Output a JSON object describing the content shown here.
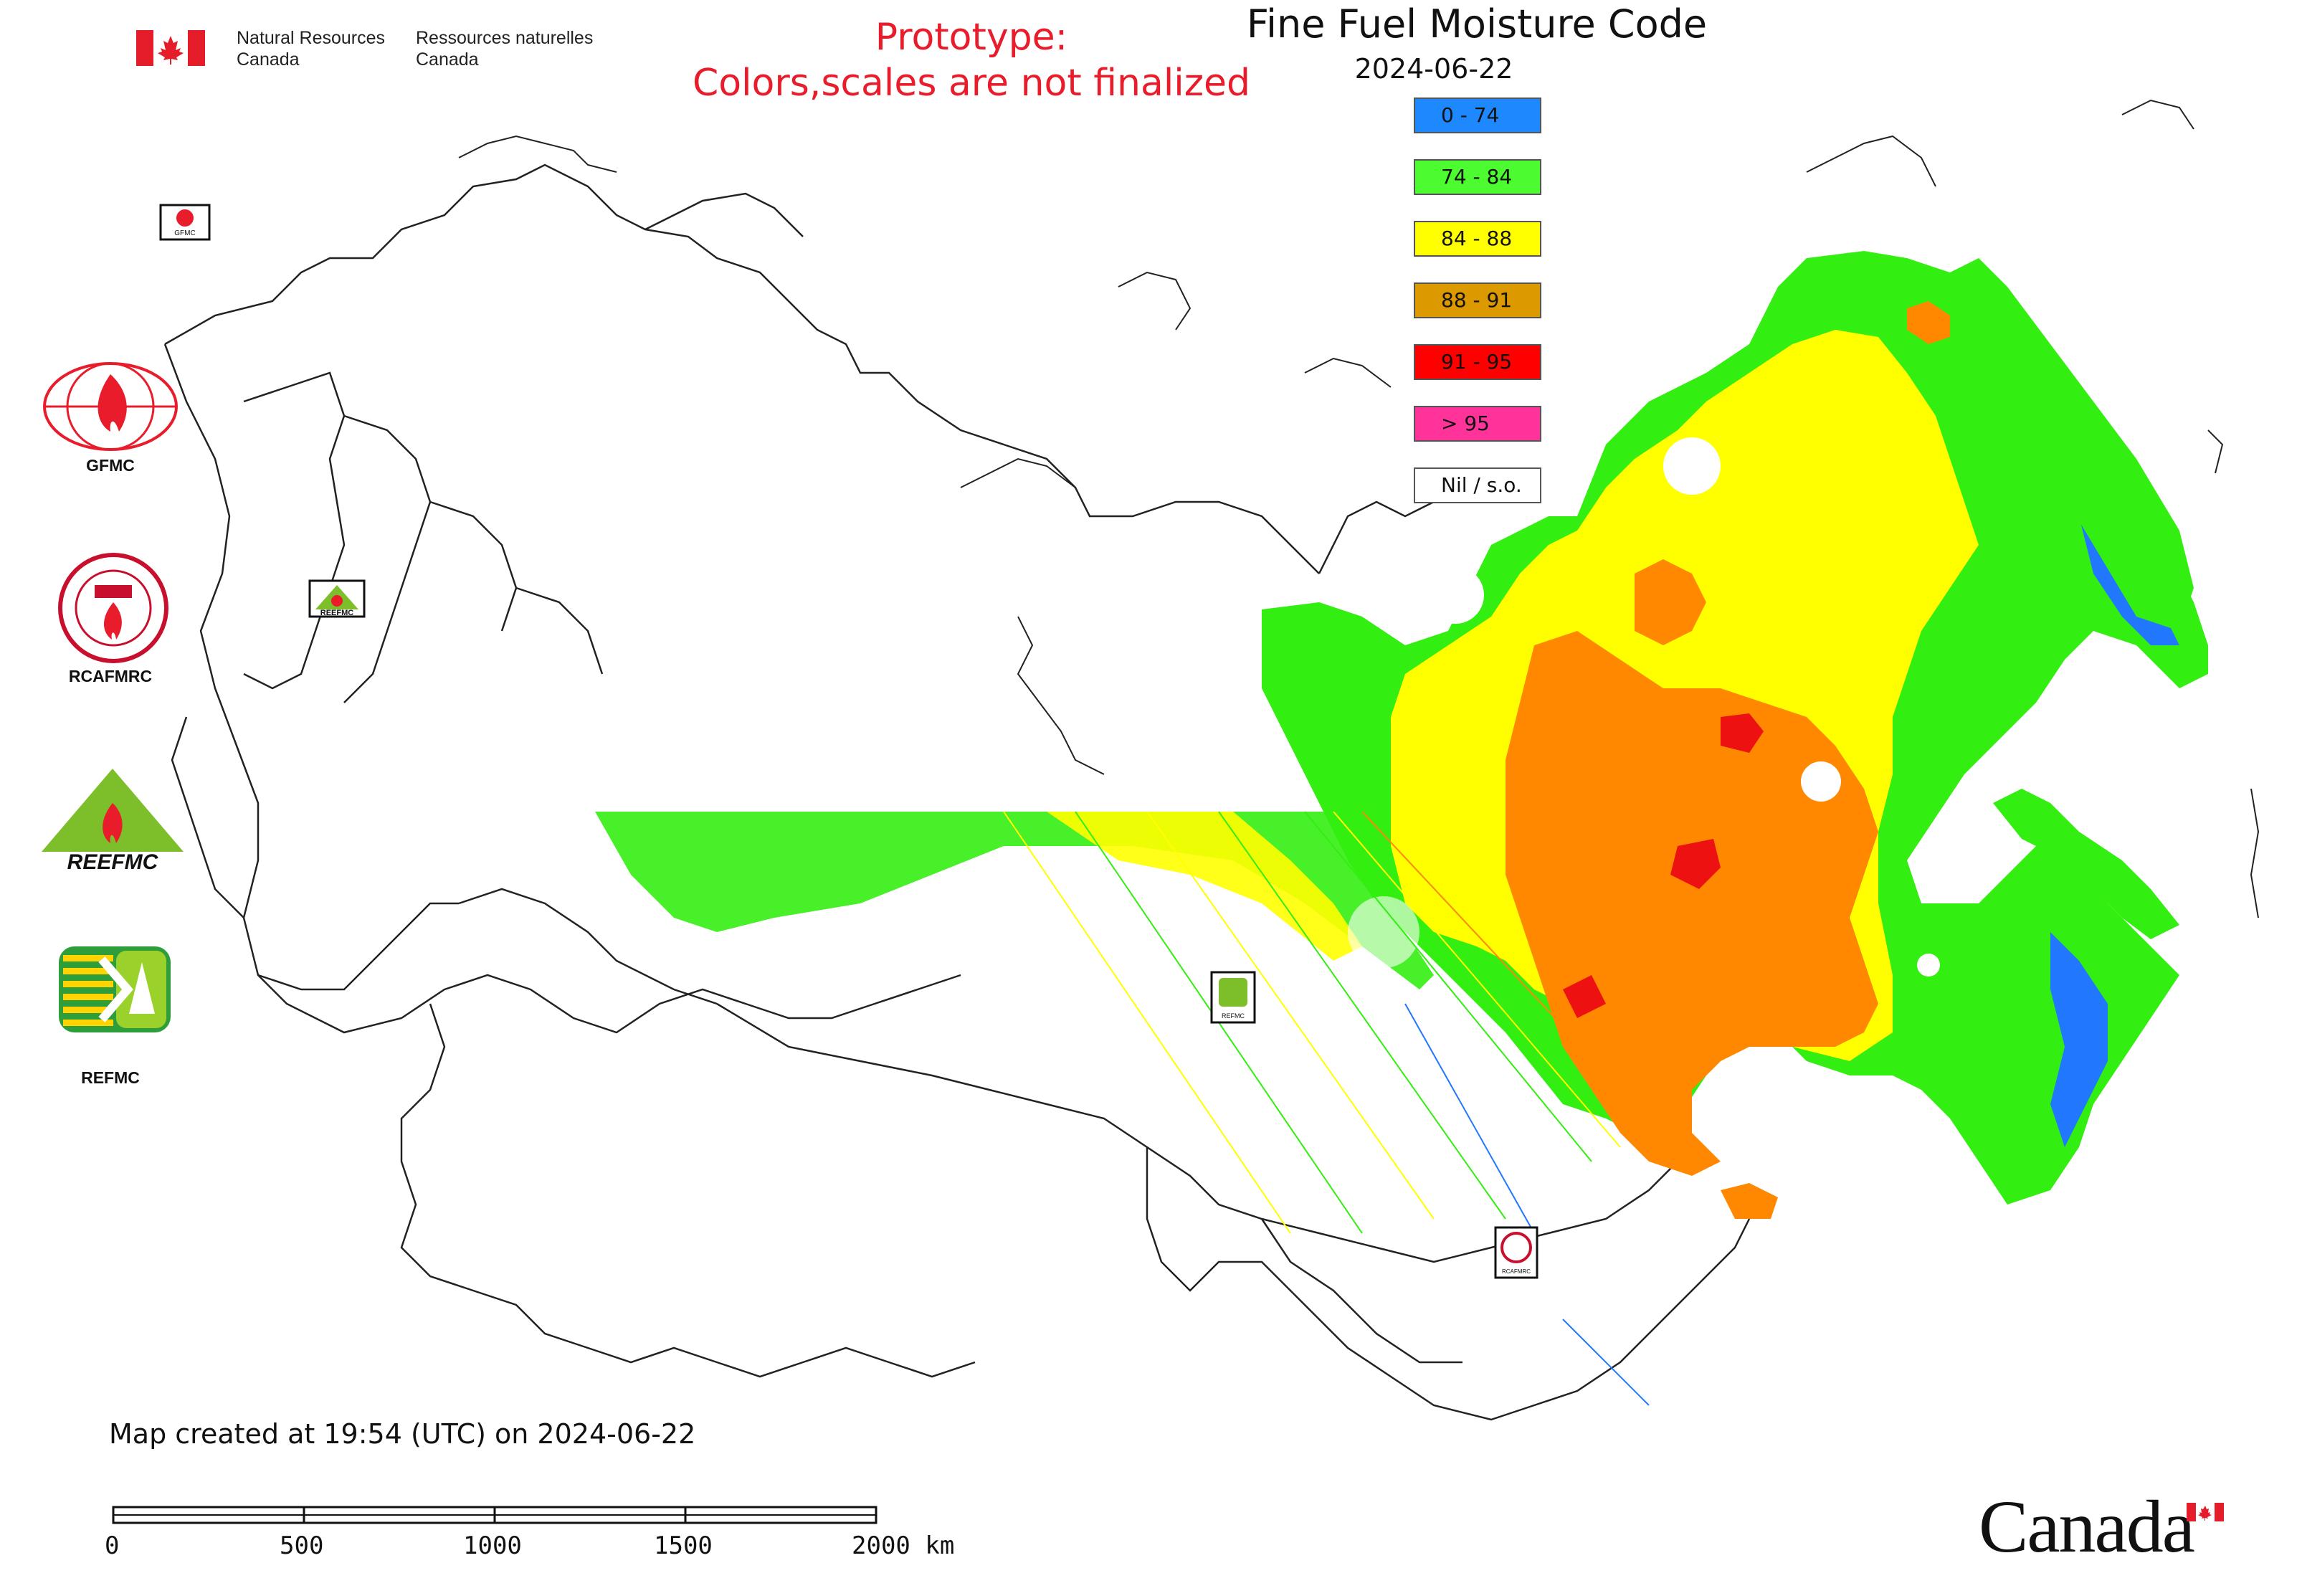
{
  "header": {
    "nrcan_en": [
      "Natural Resources",
      "Canada"
    ],
    "nrcan_fr": [
      "Ressources naturelles",
      "Canada"
    ]
  },
  "prototype_notice": [
    "Prototype:",
    "Colors,scales are not finalized"
  ],
  "map": {
    "title": "Fine Fuel Moisture Code",
    "date": "2024-06-22",
    "legend": [
      {
        "label": "0 - 74",
        "color": "#1e88ff"
      },
      {
        "label": "74 - 84",
        "color": "#4cfb30"
      },
      {
        "label": "84 - 88",
        "color": "#ffff00"
      },
      {
        "label": "88 - 91",
        "color": "#dd9900"
      },
      {
        "label": "91 - 95",
        "color": "#ff0000"
      },
      {
        "label": "> 95",
        "color": "#ff3399"
      },
      {
        "label": "Nil / s.o.",
        "color": "#ffffff"
      }
    ],
    "fill_colors": {
      "green": "#33ee11",
      "yellow": "#ffff00",
      "orange": "#ff8800",
      "red": "#ee1111",
      "blue": "#2277ff"
    }
  },
  "organizations": [
    {
      "label": "GFMC",
      "icon": "gfmc-logo"
    },
    {
      "label": "RCAFMRC",
      "icon": "rcafmrc-logo"
    },
    {
      "label": "",
      "icon": "reefmc-logo",
      "wordmark": "REEFMC"
    },
    {
      "label": "REFMC",
      "icon": "refmc-logo"
    }
  ],
  "map_markers": [
    {
      "label": "GFMC",
      "icon": "gfmc-marker-icon"
    },
    {
      "label": "REEFMC",
      "icon": "reefmc-marker-icon"
    },
    {
      "label": "REFMC",
      "icon": "refmc-marker-icon"
    },
    {
      "label": "RCAFMRC",
      "icon": "rcafmrc-marker-icon"
    }
  ],
  "footer": {
    "created": "Map created at 19:54 (UTC) on 2024-06-22",
    "scale_labels": [
      "0",
      "500",
      "1000",
      "1500",
      "2000 km"
    ],
    "wordmark": "Canada"
  }
}
